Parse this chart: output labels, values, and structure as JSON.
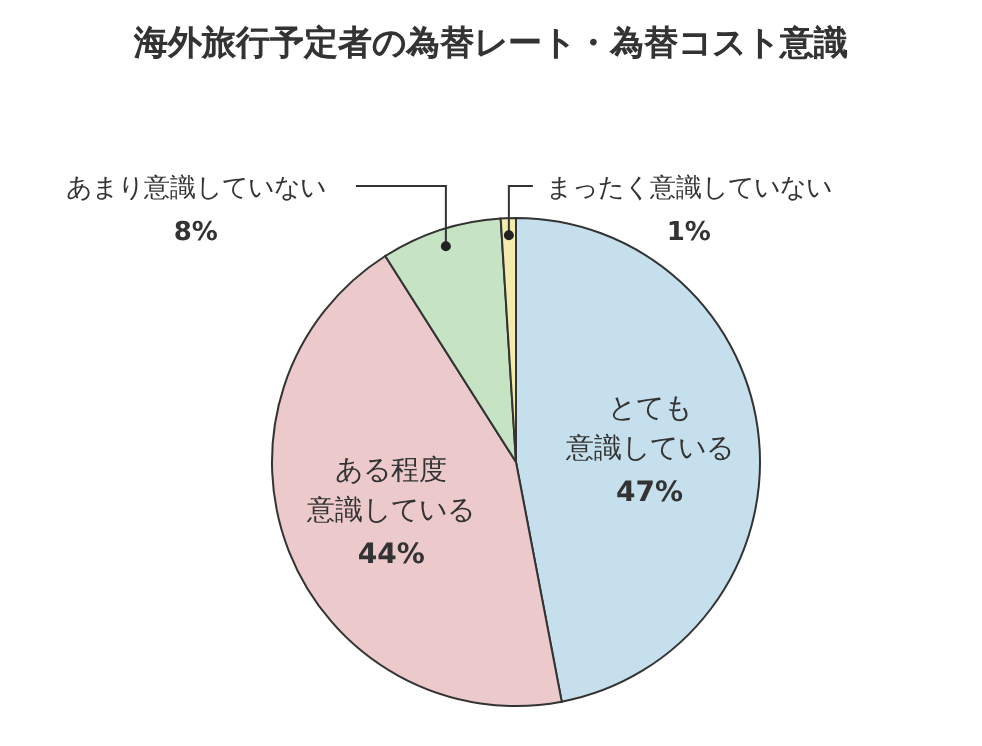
{
  "chart_data": {
    "type": "pie",
    "title": "海外旅行予定者の為替レート・為替コスト意識",
    "categories": [
      "とても意識している",
      "ある程度意識している",
      "あまり意識していない",
      "まったく意識していない"
    ],
    "values": [
      47,
      44,
      8,
      1
    ],
    "value_labels": [
      "47%",
      "44%",
      "8%",
      "1%"
    ],
    "colors": [
      "#c5e0ec",
      "#ecc9cb",
      "#c6e3c4",
      "#f3ebad"
    ]
  }
}
